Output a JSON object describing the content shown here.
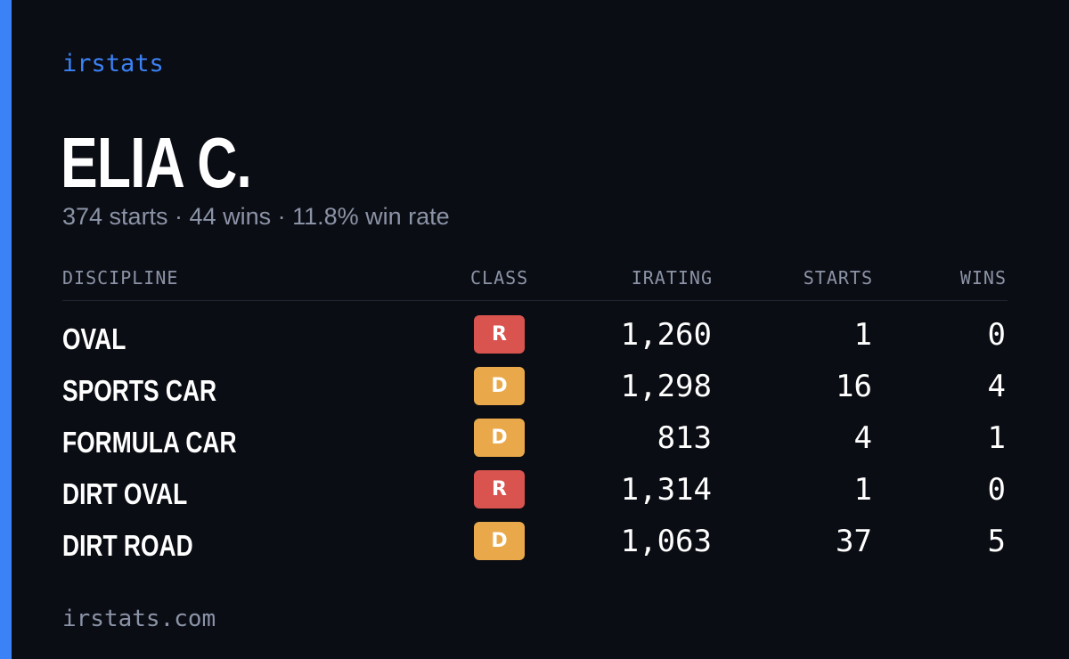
{
  "brand": "irstats",
  "driver": {
    "name": "ELIA C.",
    "summary": "374 starts · 44 wins · 11.8% win rate"
  },
  "table": {
    "headers": {
      "discipline": "DISCIPLINE",
      "class": "CLASS",
      "irating": "IRATING",
      "starts": "STARTS",
      "wins": "WINS"
    },
    "rows": [
      {
        "discipline": "OVAL",
        "class": "R",
        "irating": "1,260",
        "starts": "1",
        "wins": "0"
      },
      {
        "discipline": "SPORTS CAR",
        "class": "D",
        "irating": "1,298",
        "starts": "16",
        "wins": "4"
      },
      {
        "discipline": "FORMULA CAR",
        "class": "D",
        "irating": "813",
        "starts": "4",
        "wins": "1"
      },
      {
        "discipline": "DIRT OVAL",
        "class": "R",
        "irating": "1,314",
        "starts": "1",
        "wins": "0"
      },
      {
        "discipline": "DIRT ROAD",
        "class": "D",
        "irating": "1,063",
        "starts": "37",
        "wins": "5"
      }
    ]
  },
  "class_colors": {
    "R": "#d9534f",
    "D": "#e9a94a"
  },
  "accent_color": "#3b82f6",
  "footer": "irstats.com"
}
